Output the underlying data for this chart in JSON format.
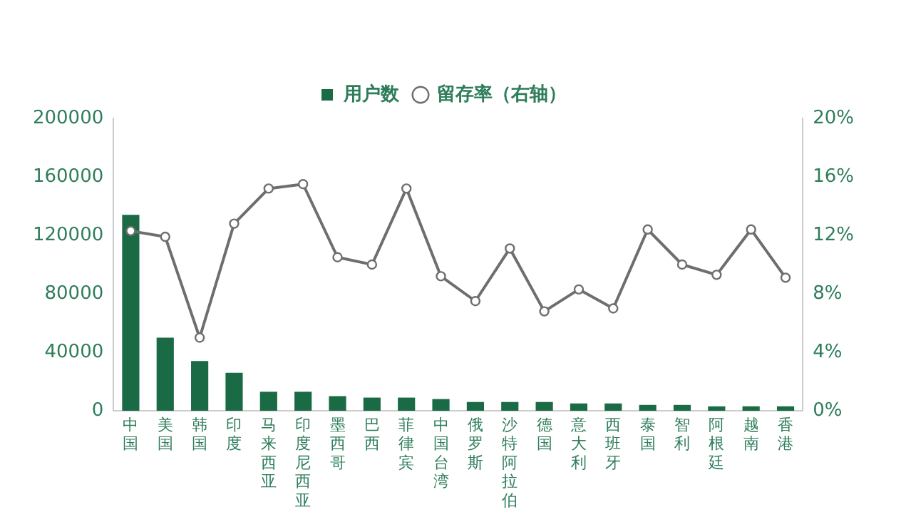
{
  "chart_data": {
    "type": "bar",
    "categories": [
      "中国",
      "美国",
      "韩国",
      "印度",
      "马来西亚",
      "印度尼西亚",
      "墨西哥",
      "巴西",
      "菲律宾",
      "中国台湾",
      "俄罗斯",
      "沙特阿拉伯",
      "德国",
      "意大利",
      "西班牙",
      "泰国",
      "智利",
      "阿根廷",
      "越南",
      "香港"
    ],
    "series": [
      {
        "name": "用户数",
        "color": "#1a6b45",
        "values": [
          134000,
          50000,
          34000,
          26000,
          13000,
          13000,
          10000,
          9000,
          9000,
          8000,
          6000,
          6000,
          6000,
          5000,
          5000,
          4000,
          4000,
          3000,
          3000,
          3000
        ]
      },
      {
        "name": "留存率（右轴）",
        "type": "line",
        "axis": "y2",
        "color": "#6e6e6e",
        "values": [
          12.3,
          11.9,
          5.0,
          12.8,
          15.2,
          15.5,
          10.5,
          10.0,
          15.2,
          9.2,
          7.5,
          11.1,
          6.8,
          8.3,
          7.0,
          12.4,
          10.0,
          9.3,
          12.4,
          9.1
        ]
      }
    ],
    "ylim": [
      0,
      200000
    ],
    "yticks": [
      0,
      40000,
      80000,
      120000,
      160000,
      200000
    ],
    "y2lim": [
      0,
      20
    ],
    "y2ticks": [
      {
        "value": 0,
        "label": "0%"
      },
      {
        "value": 4,
        "label": "4%"
      },
      {
        "value": 8,
        "label": "8%"
      },
      {
        "value": 12,
        "label": "12%"
      },
      {
        "value": 16,
        "label": "16%"
      },
      {
        "value": 20,
        "label": "20%"
      }
    ],
    "grid": false,
    "legend": "top",
    "marker": "circle"
  }
}
